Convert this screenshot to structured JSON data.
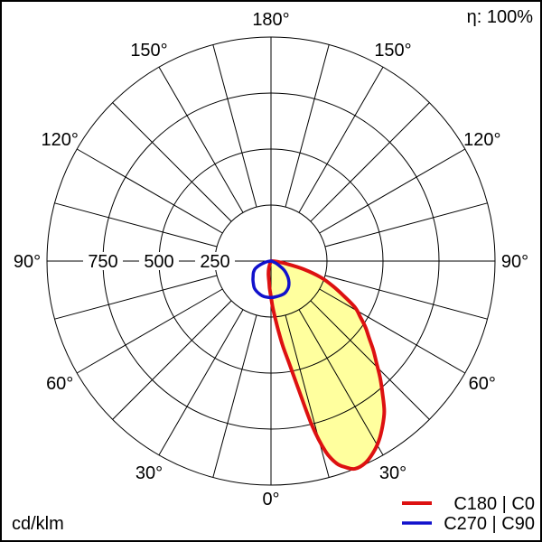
{
  "window": {
    "background": "#ffffff",
    "border_color": "#000000"
  },
  "header": {
    "efficiency_label": "η: 100%"
  },
  "footer": {
    "units_label": "cd/klm"
  },
  "legend": {
    "position": "bottom-right",
    "items": [
      {
        "label": "C180 | C0",
        "color": "#dd1111"
      },
      {
        "label": "C270 | C90",
        "color": "#1111cc"
      }
    ]
  },
  "chart_data": {
    "type": "polar",
    "subtype": "luminous-intensity-distribution",
    "units": "cd/klm",
    "efficiency_percent": 100,
    "orientation": "0° at bottom (nadir), 180° at top, angles increase symmetrically on both sides",
    "radial_axis": {
      "ticks": [
        {
          "label": "750",
          "value": 750
        },
        {
          "label": "500",
          "value": 500
        },
        {
          "label": "250",
          "value": 250
        }
      ],
      "max_value": 1000,
      "labels_side": "left-horizontal"
    },
    "grid": {
      "ring_values": [
        250,
        500,
        750,
        1000
      ],
      "spoke_step_deg": 15,
      "line_color": "#000000"
    },
    "angle_labels": [
      {
        "text": "180°",
        "deg": 180,
        "positions": [
          "top"
        ]
      },
      {
        "text": "150°",
        "deg": 150,
        "positions": [
          "left",
          "right"
        ]
      },
      {
        "text": "120°",
        "deg": 120,
        "positions": [
          "left",
          "right"
        ]
      },
      {
        "text": "90°",
        "deg": 90,
        "positions": [
          "left",
          "right"
        ]
      },
      {
        "text": "60°",
        "deg": 60,
        "positions": [
          "left",
          "right"
        ]
      },
      {
        "text": "30°",
        "deg": 30,
        "positions": [
          "left",
          "right"
        ]
      },
      {
        "text": "0°",
        "deg": 0,
        "positions": [
          "bottom"
        ]
      }
    ],
    "series": [
      {
        "name": "C180 | C0",
        "color": "#dd1111",
        "fill": "#ffff9e",
        "stroke_width": 4,
        "points_gamma_cdklm": [
          [
            -24,
            0
          ],
          [
            -20,
            15
          ],
          [
            -16,
            35
          ],
          [
            -12,
            55
          ],
          [
            -8,
            75
          ],
          [
            -5,
            95
          ],
          [
            -3,
            120
          ],
          [
            -1,
            145
          ],
          [
            0,
            160
          ],
          [
            2,
            205
          ],
          [
            4,
            250
          ],
          [
            6,
            310
          ],
          [
            8,
            385
          ],
          [
            10,
            460
          ],
          [
            12,
            575
          ],
          [
            14,
            755
          ],
          [
            16,
            885
          ],
          [
            18,
            950
          ],
          [
            20,
            980
          ],
          [
            22,
            1000
          ],
          [
            25,
            995
          ],
          [
            28,
            970
          ],
          [
            31,
            935
          ],
          [
            34,
            890
          ],
          [
            37,
            840
          ],
          [
            40,
            775
          ],
          [
            43,
            715
          ],
          [
            46,
            655
          ],
          [
            49,
            605
          ],
          [
            52,
            555
          ],
          [
            55,
            515
          ],
          [
            58,
            470
          ],
          [
            61,
            430
          ],
          [
            64,
            368
          ],
          [
            68,
            298
          ],
          [
            72,
            232
          ],
          [
            76,
            150
          ],
          [
            80,
            70
          ],
          [
            84,
            28
          ],
          [
            87,
            10
          ],
          [
            90,
            0
          ]
        ]
      },
      {
        "name": "C270 | C90",
        "color": "#1111cc",
        "fill": null,
        "stroke_width": 3.5,
        "points_gamma_cdklm": [
          [
            -90,
            0
          ],
          [
            -84,
            10
          ],
          [
            -78,
            25
          ],
          [
            -72,
            48
          ],
          [
            -65,
            76
          ],
          [
            -58,
            92
          ],
          [
            -50,
            104
          ],
          [
            -44,
            116
          ],
          [
            -38,
            128
          ],
          [
            -32,
            141
          ],
          [
            -26,
            149
          ],
          [
            -20,
            155
          ],
          [
            -14,
            160
          ],
          [
            -8,
            162
          ],
          [
            0,
            163
          ],
          [
            8,
            161
          ],
          [
            16,
            159
          ],
          [
            22,
            157
          ],
          [
            28,
            150
          ],
          [
            34,
            140
          ],
          [
            40,
            125
          ],
          [
            46,
            106
          ],
          [
            52,
            84
          ],
          [
            56,
            68
          ],
          [
            60,
            48
          ],
          [
            65,
            28
          ],
          [
            70,
            13
          ],
          [
            76,
            4
          ],
          [
            82,
            1
          ],
          [
            90,
            0
          ]
        ]
      }
    ]
  }
}
